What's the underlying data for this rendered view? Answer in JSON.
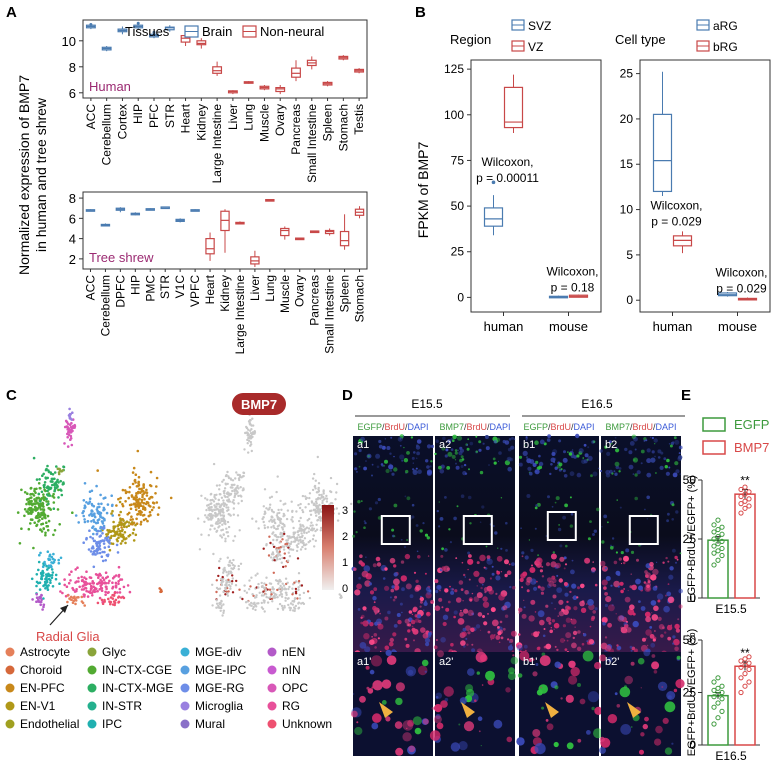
{
  "colors": {
    "brain": "#4a7bb0",
    "nonneural": "#c84848",
    "red": "#d84848",
    "green": "#3d9a3d",
    "magenta": "#9b2a72",
    "badge": "#a82a2a"
  },
  "panels": {
    "A": "A",
    "B": "B",
    "C": "C",
    "D": "D",
    "E": "E"
  },
  "chart_data": [
    {
      "type": "boxplot",
      "id": "A-human",
      "title": "",
      "ylabel_line1": "Normalized expression of BMP7",
      "ylabel_line2": "in human and tree shrew",
      "label": "Human",
      "legend_title": "Tissues",
      "legend": [
        "Brain",
        "Non-neural"
      ],
      "ylim": [
        5.6,
        11.6
      ],
      "yticks": [
        6,
        8,
        10
      ],
      "categories": [
        "ACC",
        "Cerebellum",
        "Cortex",
        "HIP",
        "PFC",
        "STR",
        "Heart",
        "Kidney",
        "Large Intestine",
        "Liver",
        "Lung",
        "Muscle",
        "Ovary",
        "Pancreas",
        "Small Intestine",
        "Spleen",
        "Stomach",
        "Testis"
      ],
      "groups": [
        "brain",
        "brain",
        "brain",
        "brain",
        "brain",
        "brain",
        "non",
        "non",
        "non",
        "non",
        "non",
        "non",
        "non",
        "non",
        "non",
        "non",
        "non",
        "non"
      ],
      "boxes": [
        [
          10.9,
          11.0,
          11.1,
          11.2,
          11.3
        ],
        [
          9.2,
          9.3,
          9.4,
          9.5,
          9.6
        ],
        [
          10.5,
          10.7,
          10.8,
          10.9,
          11.1
        ],
        [
          10.9,
          11.0,
          11.1,
          11.2,
          11.3
        ],
        [
          10.2,
          10.3,
          10.4,
          10.5,
          10.6
        ],
        [
          10.7,
          10.85,
          11.0,
          11.05,
          11.2
        ],
        [
          9.6,
          9.9,
          10.2,
          10.4,
          10.7
        ],
        [
          9.4,
          9.7,
          9.8,
          10.0,
          10.2
        ],
        [
          7.3,
          7.5,
          7.7,
          8.0,
          8.4
        ],
        [
          5.9,
          6.0,
          6.1,
          6.15,
          6.2
        ],
        [
          6.7,
          6.75,
          6.8,
          6.85,
          6.9
        ],
        [
          6.2,
          6.3,
          6.4,
          6.5,
          6.6
        ],
        [
          5.9,
          6.1,
          6.3,
          6.4,
          6.6
        ],
        [
          6.9,
          7.2,
          7.5,
          7.9,
          8.5
        ],
        [
          7.8,
          8.1,
          8.3,
          8.5,
          8.8
        ],
        [
          6.5,
          6.6,
          6.7,
          6.8,
          6.9
        ],
        [
          8.5,
          8.6,
          8.7,
          8.8,
          8.9
        ],
        [
          7.5,
          7.6,
          7.7,
          7.8,
          7.9
        ]
      ],
      "outliers": [
        [
          0,
          11.25
        ],
        [
          4,
          10.65
        ],
        [
          3,
          11.35
        ]
      ]
    },
    {
      "type": "boxplot",
      "id": "A-shrew",
      "label": "Tree shrew",
      "ylim": [
        1,
        8.6
      ],
      "yticks": [
        2,
        4,
        6,
        8
      ],
      "categories": [
        "ACC",
        "Cerebellum",
        "DPFC",
        "HIP",
        "PMC",
        "STR",
        "V1C",
        "VPFC",
        "Heart",
        "Kidney",
        "Large Intestine",
        "Liver",
        "Lung",
        "Muscle",
        "Ovary",
        "Pancreas",
        "Small Intestine",
        "Spleen",
        "Stomach"
      ],
      "groups": [
        "brain",
        "brain",
        "brain",
        "brain",
        "brain",
        "brain",
        "brain",
        "brain",
        "non",
        "non",
        "non",
        "non",
        "non",
        "non",
        "non",
        "non",
        "non",
        "non",
        "non"
      ],
      "boxes": [
        [
          6.7,
          6.75,
          6.8,
          6.85,
          6.9
        ],
        [
          5.2,
          5.3,
          5.35,
          5.4,
          5.5
        ],
        [
          6.6,
          6.8,
          6.9,
          7.0,
          7.1
        ],
        [
          6.3,
          6.4,
          6.45,
          6.5,
          6.6
        ],
        [
          6.8,
          6.85,
          6.9,
          6.95,
          7.0
        ],
        [
          7.0,
          7.05,
          7.1,
          7.12,
          7.15
        ],
        [
          5.6,
          5.7,
          5.8,
          5.9,
          6.0
        ],
        [
          6.7,
          6.75,
          6.8,
          6.85,
          6.9
        ],
        [
          1.8,
          2.5,
          3.0,
          4.0,
          4.6
        ],
        [
          2.6,
          4.8,
          5.8,
          6.7,
          6.9
        ],
        [
          5.4,
          5.45,
          5.5,
          5.6,
          5.7
        ],
        [
          1.2,
          1.5,
          1.8,
          2.2,
          2.8
        ],
        [
          7.7,
          7.75,
          7.8,
          7.85,
          7.9
        ],
        [
          3.9,
          4.3,
          4.8,
          5.0,
          5.2
        ],
        [
          3.9,
          3.95,
          4.0,
          4.05,
          4.1
        ],
        [
          4.6,
          4.65,
          4.7,
          4.75,
          4.8
        ],
        [
          4.3,
          4.5,
          4.7,
          4.8,
          5.0
        ],
        [
          2.9,
          3.3,
          3.8,
          4.7,
          6.4
        ],
        [
          6.0,
          6.3,
          6.6,
          6.9,
          7.2
        ]
      ],
      "outliers": []
    },
    {
      "type": "boxplot",
      "id": "B-region",
      "ylabel": "FPKM of BMP7",
      "legend_title": "Region",
      "legend": [
        "SVZ",
        "VZ"
      ],
      "ylim": [
        -8,
        130
      ],
      "yticks": [
        0,
        25,
        50,
        75,
        100,
        125
      ],
      "categories": [
        "human",
        "mouse"
      ],
      "boxes": [
        [
          [
            34,
            39,
            43,
            49,
            56
          ],
          [
            90,
            93,
            96,
            115,
            122
          ]
        ],
        [
          [
            0,
            0,
            0.3,
            0.6,
            1
          ],
          [
            0,
            0.1,
            0.6,
            1.2,
            1.6
          ]
        ]
      ],
      "outliers": [
        [
          0,
          0,
          63
        ]
      ],
      "annotations": [
        {
          "x": 0,
          "y": 72,
          "line1": "Wilcoxon,",
          "line2": "p = 0.00011"
        },
        {
          "x": 1,
          "y": 12,
          "line1": "Wilcoxon,",
          "line2": "p = 0.18"
        }
      ]
    },
    {
      "type": "boxplot",
      "id": "B-cell",
      "legend_title": "Cell type",
      "legend": [
        "aRG",
        "bRG"
      ],
      "ylim": [
        -1.3,
        26.5
      ],
      "yticks": [
        0,
        5,
        10,
        15,
        20,
        25
      ],
      "categories": [
        "human",
        "mouse"
      ],
      "boxes": [
        [
          [
            11.5,
            12,
            15.4,
            20.5,
            25.2
          ],
          [
            5.2,
            6,
            6.6,
            7.1,
            7.6
          ]
        ],
        [
          [
            0.4,
            0.5,
            0.6,
            0.8,
            0.9
          ],
          [
            0,
            0.05,
            0.1,
            0.2,
            0.3
          ]
        ]
      ],
      "outliers": [],
      "annotations": [
        {
          "x": 0,
          "y": 10,
          "line1": "Wilcoxon,",
          "line2": "p = 0.029"
        },
        {
          "x": 1,
          "y": 2.6,
          "line1": "Wilcoxon,",
          "line2": "p = 0.029"
        }
      ]
    },
    {
      "type": "bar",
      "id": "E-155",
      "ylabel": "EGFP+BrdU+/EGFP+ (%)",
      "legend": [
        "EGFP",
        "BMP7"
      ],
      "xlabel": "E15.5",
      "ylim": [
        0,
        50
      ],
      "yticks": [
        0,
        25,
        50
      ],
      "values": [
        24.5,
        44
      ],
      "err": [
        1.5,
        2
      ],
      "sig": "**",
      "dots": [
        [
          14,
          16,
          18,
          19,
          20,
          21,
          22,
          23,
          24,
          25,
          26,
          27,
          28,
          29,
          30,
          31,
          33
        ],
        [
          36,
          38,
          39,
          40,
          41,
          42,
          43,
          44,
          45,
          46,
          47
        ]
      ]
    },
    {
      "type": "bar",
      "id": "E-165",
      "ylabel": "EGFP+BrdU+/EGFP+ (%)",
      "xlabel": "E16.5",
      "ylim": [
        0,
        50
      ],
      "yticks": [
        0,
        25,
        50
      ],
      "values": [
        23.5,
        37.5
      ],
      "err": [
        1.5,
        2
      ],
      "sig": "**",
      "dots": [
        [
          10,
          13,
          16,
          18,
          20,
          22,
          23,
          24,
          25,
          26,
          27,
          28,
          30,
          32
        ],
        [
          25,
          28,
          30,
          32,
          34,
          36,
          37,
          38,
          39,
          40,
          41,
          42
        ]
      ]
    }
  ],
  "tsne": {
    "gene": "BMP7",
    "colorbar_ticks": [
      "3",
      "2",
      "1",
      "0"
    ],
    "arrow_label": "Radial Glia",
    "legend": [
      {
        "label": "Astrocyte",
        "color": "#e5805a"
      },
      {
        "label": "Glyc",
        "color": "#8aa43a"
      },
      {
        "label": "MGE-div",
        "color": "#3ab0d6"
      },
      {
        "label": "nEN",
        "color": "#b35ac8"
      },
      {
        "label": "Choroid",
        "color": "#d6683a"
      },
      {
        "label": "IN-CTX-CGE",
        "color": "#52aa32"
      },
      {
        "label": "MGE-IPC",
        "color": "#58a0e0"
      },
      {
        "label": "nIN",
        "color": "#c85ad0"
      },
      {
        "label": "EN-PFC",
        "color": "#c8881a"
      },
      {
        "label": "IN-CTX-MGE",
        "color": "#2cae62"
      },
      {
        "label": "MGE-RG",
        "color": "#6e8ee8"
      },
      {
        "label": "OPC",
        "color": "#d858b8"
      },
      {
        "label": "EN-V1",
        "color": "#b09818"
      },
      {
        "label": "IN-STR",
        "color": "#24b08e"
      },
      {
        "label": "Microglia",
        "color": "#9a80e0"
      },
      {
        "label": "RG",
        "color": "#e8509a"
      },
      {
        "label": "Endothelial",
        "color": "#a0a020"
      },
      {
        "label": "IPC",
        "color": "#20b0b0"
      },
      {
        "label": "Mural",
        "color": "#8a70c8"
      },
      {
        "label": "Unknown",
        "color": "#ee5070"
      }
    ]
  },
  "micro": {
    "header_left": "E15.5",
    "header_right": "E16.5",
    "cols": [
      {
        "g": "EGFP",
        "r": "BrdU",
        "b": "DAPI"
      },
      {
        "g": "BMP7",
        "r": "BrdU",
        "b": "DAPI"
      },
      {
        "g": "EGFP",
        "r": "BrdU",
        "b": "DAPI"
      },
      {
        "g": "BMP7",
        "r": "BrdU",
        "b": "DAPI"
      }
    ],
    "tiles": [
      "a1",
      "a2",
      "b1",
      "b2"
    ],
    "zooms": [
      "a1'",
      "a2'",
      "b1'",
      "b2'"
    ]
  }
}
